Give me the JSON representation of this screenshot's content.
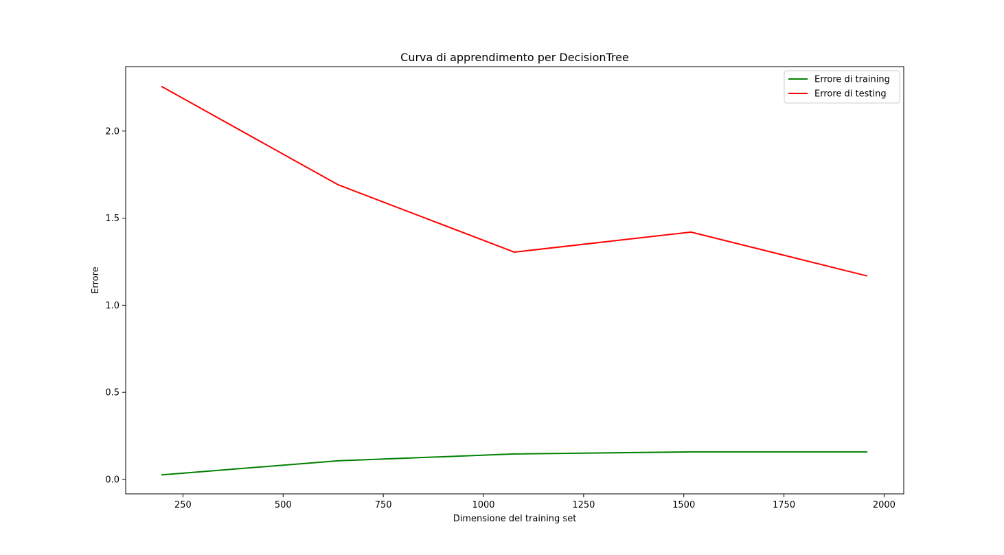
{
  "chart_data": {
    "type": "line",
    "title": "Curva di apprendimento per DecisionTree",
    "xlabel": "Dimensione del training set",
    "ylabel": "Errore",
    "xlim": [
      107,
      2049
    ],
    "ylim": [
      -0.083,
      2.37
    ],
    "x_ticks": [
      250,
      500,
      750,
      1000,
      1250,
      1500,
      1750,
      2000
    ],
    "x_tick_labels": [
      "250",
      "500",
      "750",
      "1000",
      "1250",
      "1500",
      "1750",
      "2000"
    ],
    "y_ticks": [
      0.0,
      0.5,
      1.0,
      1.5,
      2.0
    ],
    "y_tick_labels": [
      "0.0",
      "0.5",
      "1.0",
      "1.5",
      "2.0"
    ],
    "grid": false,
    "legend_position": "top-right",
    "x": [
      196,
      637,
      1077,
      1518,
      1958
    ],
    "series": [
      {
        "name": "Errore di training",
        "color": "#008000",
        "values": [
          0.026,
          0.107,
          0.146,
          0.158,
          0.158
        ]
      },
      {
        "name": "Errore di testing",
        "color": "#ff0000",
        "values": [
          2.257,
          1.692,
          1.305,
          1.42,
          1.168
        ]
      }
    ]
  }
}
